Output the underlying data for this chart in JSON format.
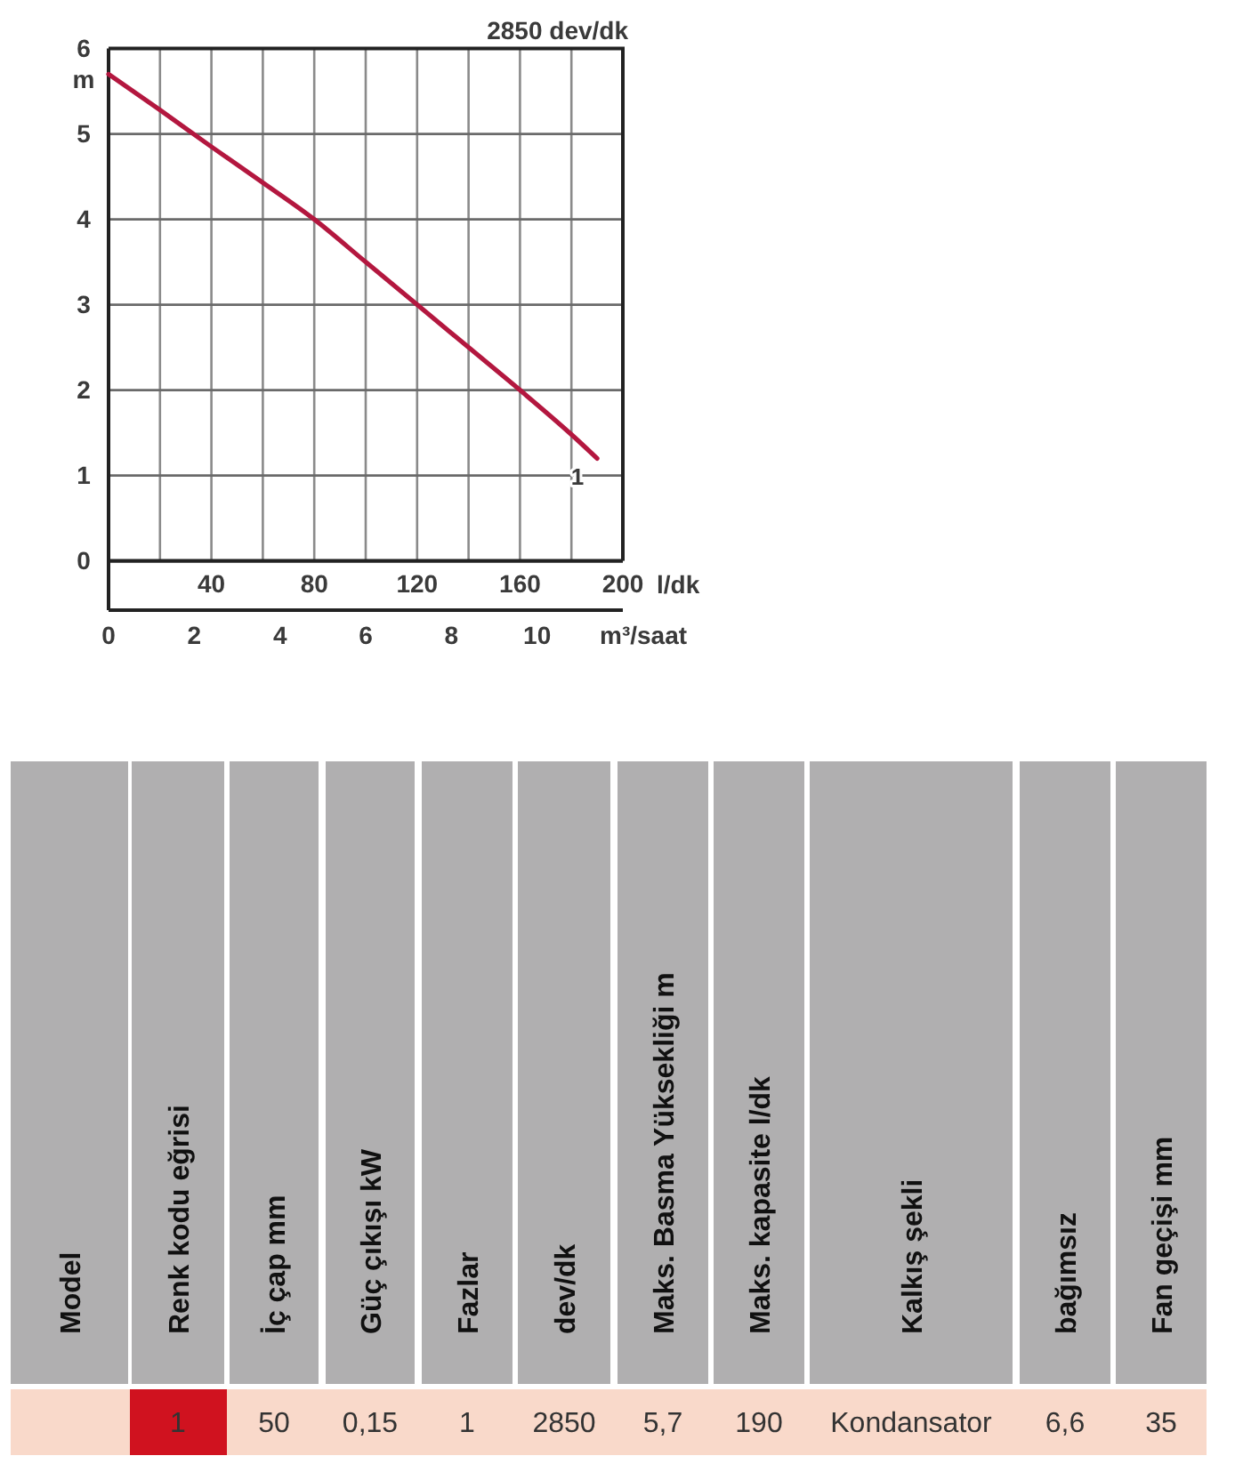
{
  "chart_data": [
    {
      "type": "line",
      "title": "2850 dev/dk",
      "xlabel": "l/dk",
      "ylabel": "m",
      "x2label": "m³/saat",
      "xlim": [
        0,
        200
      ],
      "xticks": [
        {
          "value": 20,
          "label": null
        },
        40,
        {
          "value": 60,
          "label": null
        },
        80,
        {
          "value": 100,
          "label": null
        },
        120,
        {
          "value": 140,
          "label": null
        },
        160,
        {
          "value": 180,
          "label": null
        },
        200
      ],
      "x2lim": [
        0,
        12
      ],
      "x2ticks": [
        0,
        2,
        4,
        6,
        8,
        10
      ],
      "ylim": [
        0,
        6
      ],
      "yticks": [
        0,
        1,
        2,
        3,
        4,
        5,
        6
      ],
      "grid": true,
      "series": [
        {
          "name": "1",
          "color": "#b3173f",
          "x": [
            0,
            20,
            40,
            60,
            80,
            100,
            120,
            140,
            160,
            180,
            190
          ],
          "values": [
            5.7,
            5.28,
            4.85,
            4.43,
            4.0,
            3.5,
            3.0,
            2.5,
            2.0,
            1.48,
            1.2
          ]
        }
      ]
    },
    {
      "type": "other",
      "categories": [
        "Model",
        "Renk kodu eğrisi",
        "İç çap mm",
        "Güç çıkışı kW",
        "Fazlar",
        "dev/dk",
        "Maks. Basma Yüksekliği m",
        "Maks. kapasite l/dk",
        "Kalkış şekli",
        "bağımsız",
        "Fan geçişi mm"
      ],
      "value_labels": [
        null,
        "1",
        "50",
        "0,15",
        "1",
        "2850",
        "5,7",
        "190",
        "Kondansator",
        "6,6",
        "35"
      ],
      "colors": [
        "#f9d9ca",
        "#d0121f",
        "#f9d9ca",
        "#f9d9ca",
        "#f9d9ca",
        "#f9d9ca",
        "#f9d9ca",
        "#f9d9ca",
        "#f9d9ca",
        "#f9d9ca",
        "#f9d9ca"
      ]
    }
  ]
}
